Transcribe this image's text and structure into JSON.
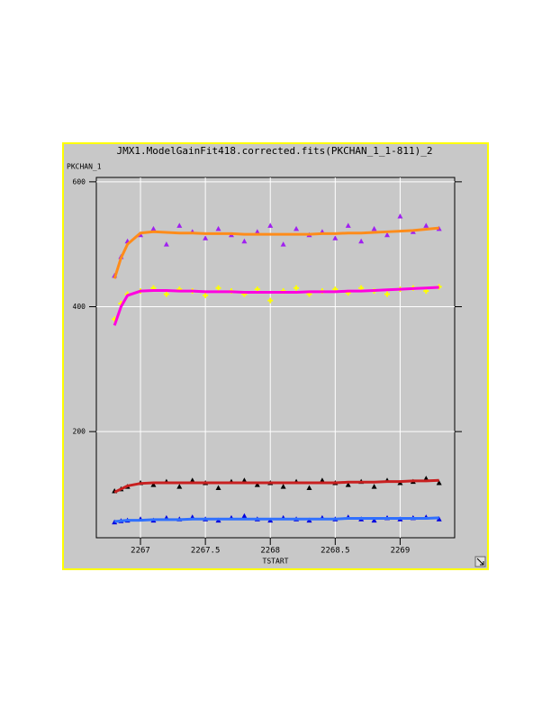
{
  "chart_data": {
    "type": "scatter",
    "title": "JMX1.ModelGainFit418.corrected.fits(PKCHAN_1_1-811)_2",
    "y_label": "PKCHAN_1",
    "x_label": "TSTART",
    "xlim": [
      2266.66,
      2269.42
    ],
    "ylim": [
      30,
      607
    ],
    "xticks": [
      2267,
      2267.5,
      2268,
      2268.5,
      2269
    ],
    "yticks": [
      200,
      400,
      600
    ],
    "grid": true,
    "x": [
      2266.8,
      2266.85,
      2266.9,
      2267.0,
      2267.1,
      2267.2,
      2267.3,
      2267.4,
      2267.5,
      2267.6,
      2267.7,
      2267.8,
      2267.9,
      2268.0,
      2268.1,
      2268.2,
      2268.3,
      2268.4,
      2268.5,
      2268.6,
      2268.7,
      2268.8,
      2268.9,
      2269.0,
      2269.1,
      2269.2,
      2269.3
    ],
    "series": [
      {
        "color": "#a020f0",
        "marker": "triangle",
        "values": [
          450,
          480,
          505,
          515,
          525,
          500,
          530,
          520,
          510,
          525,
          515,
          505,
          520,
          530,
          500,
          525,
          515,
          520,
          510,
          530,
          505,
          525,
          515,
          545,
          520,
          530,
          525
        ]
      },
      {
        "color": "#ff8c1a",
        "marker": "line",
        "values": [
          445,
          478,
          500,
          518,
          520,
          519,
          518,
          518,
          517,
          517,
          517,
          516,
          516,
          516,
          516,
          516,
          516,
          517,
          517,
          518,
          518,
          519,
          520,
          521,
          522,
          524,
          526
        ]
      },
      {
        "color": "#ffff00",
        "marker": "plus",
        "values": [
          380,
          405,
          420,
          425,
          430,
          420,
          428,
          425,
          418,
          430,
          425,
          420,
          428,
          410,
          425,
          430,
          420,
          425,
          428,
          422,
          430,
          425,
          420,
          428,
          430,
          425,
          432
        ]
      },
      {
        "color": "#ff00e0",
        "marker": "line",
        "values": [
          370,
          400,
          418,
          425,
          426,
          426,
          425,
          425,
          424,
          424,
          424,
          423,
          423,
          423,
          423,
          423,
          424,
          424,
          424,
          425,
          425,
          426,
          427,
          428,
          429,
          430,
          431
        ]
      },
      {
        "color": "#000000",
        "marker": "triangle",
        "values": [
          105,
          108,
          112,
          118,
          115,
          120,
          112,
          122,
          118,
          110,
          120,
          122,
          115,
          118,
          112,
          120,
          110,
          122,
          118,
          115,
          120,
          112,
          122,
          118,
          120,
          125,
          118
        ]
      },
      {
        "color": "#c82020",
        "marker": "line",
        "values": [
          103,
          108,
          113,
          117,
          118,
          118,
          118,
          118,
          118,
          118,
          118,
          118,
          118,
          118,
          118,
          118,
          118,
          118,
          118,
          119,
          119,
          119,
          120,
          120,
          121,
          121,
          122
        ]
      },
      {
        "color": "#0000e0",
        "marker": "triangle",
        "values": [
          55,
          57,
          58,
          60,
          58,
          62,
          60,
          63,
          60,
          58,
          62,
          65,
          60,
          58,
          62,
          60,
          58,
          62,
          60,
          63,
          60,
          58,
          62,
          60,
          62,
          63,
          60
        ]
      },
      {
        "color": "#3070ff",
        "marker": "line",
        "values": [
          56,
          57,
          58,
          58,
          59,
          59,
          59,
          60,
          60,
          60,
          60,
          60,
          60,
          60,
          60,
          60,
          60,
          60,
          60,
          61,
          61,
          61,
          61,
          61,
          61,
          61,
          62
        ]
      }
    ]
  }
}
